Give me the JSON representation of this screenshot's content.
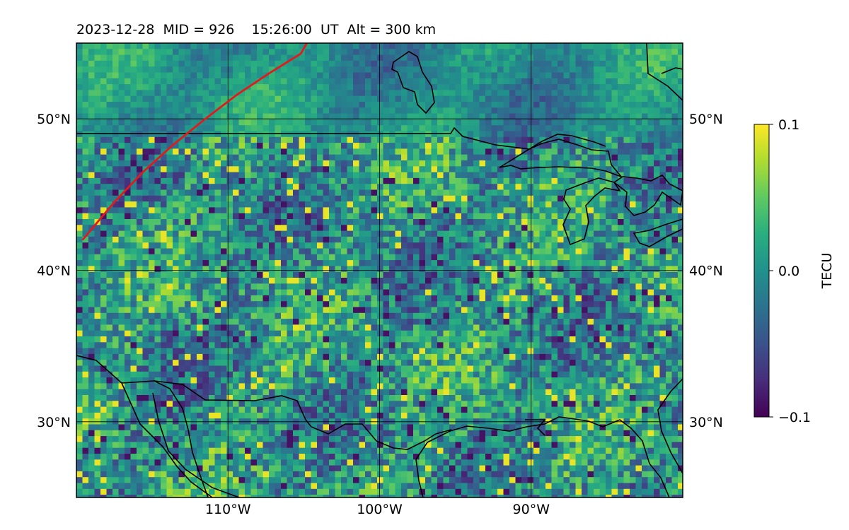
{
  "chart_data": {
    "type": "heatmap",
    "title": "2023-12-28  MID = 926    15:26:00  UT  Alt = 300 km",
    "projection": "map",
    "x_axis": {
      "range": [
        -120,
        -80
      ],
      "ticks": [
        -110,
        -100,
        -90
      ],
      "tick_labels": [
        "110°W",
        "100°W",
        "90°W"
      ]
    },
    "y_axis": {
      "range": [
        25,
        55
      ],
      "ticks": [
        30,
        40,
        50
      ],
      "tick_labels": [
        "30°N",
        "40°N",
        "50°N"
      ],
      "labels_both_sides": true
    },
    "grid": true,
    "colormap": "viridis",
    "colorbar": {
      "label": "TECU",
      "range": [
        -0.1,
        0.1
      ],
      "ticks": [
        -0.1,
        0.0,
        0.1
      ],
      "tick_labels": [
        "−0.1",
        "0.0",
        "0.1"
      ]
    },
    "field_description": "Differential TEC perturbation over North America, values mostly between -0.1 and 0.1 TECU, speckled structure",
    "red_track": {
      "color": "#e31a1c",
      "points": [
        [
          -119.6,
          42.0
        ],
        [
          -117.5,
          44.5
        ],
        [
          -115.6,
          46.5
        ],
        [
          -113.6,
          48.3
        ],
        [
          -111.5,
          50.0
        ],
        [
          -109.4,
          51.6
        ],
        [
          -107.3,
          53.0
        ],
        [
          -105.2,
          54.3
        ],
        [
          -104.8,
          55.0
        ]
      ]
    },
    "coastlines_color": "#000000"
  }
}
